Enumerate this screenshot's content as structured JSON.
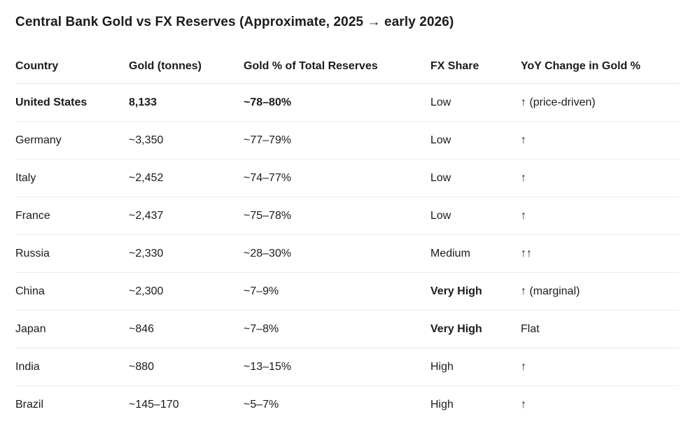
{
  "page": {
    "background": "#ffffff"
  },
  "chart_data": {
    "type": "table",
    "title": "Central Bank Gold vs FX Reserves (Approximate, 2025 → early 2026)",
    "columns": [
      "Country",
      "Gold (tonnes)",
      "Gold % of Total Reserves",
      "FX Share",
      "YoY Change in Gold %"
    ],
    "rows": [
      {
        "cells": [
          "United States",
          "8,133",
          "~78–80%",
          "Low",
          "↑ (price-driven)"
        ],
        "bold": [
          0,
          1,
          2
        ]
      },
      {
        "cells": [
          "Germany",
          "~3,350",
          "~77–79%",
          "Low",
          "↑"
        ],
        "bold": []
      },
      {
        "cells": [
          "Italy",
          "~2,452",
          "~74–77%",
          "Low",
          "↑"
        ],
        "bold": []
      },
      {
        "cells": [
          "France",
          "~2,437",
          "~75–78%",
          "Low",
          "↑"
        ],
        "bold": []
      },
      {
        "cells": [
          "Russia",
          "~2,330",
          "~28–30%",
          "Medium",
          "↑↑"
        ],
        "bold": []
      },
      {
        "cells": [
          "China",
          "~2,300",
          "~7–9%",
          "Very High",
          "↑ (marginal)"
        ],
        "bold": [
          3
        ]
      },
      {
        "cells": [
          "Japan",
          "~846",
          "~7–8%",
          "Very High",
          "Flat"
        ],
        "bold": [
          3
        ]
      },
      {
        "cells": [
          "India",
          "~880",
          "~13–15%",
          "High",
          "↑"
        ],
        "bold": []
      },
      {
        "cells": [
          "Brazil",
          "~145–170",
          "~5–7%",
          "High",
          "↑"
        ],
        "bold": []
      }
    ]
  },
  "colors": {
    "text": "#1b1b1b",
    "header_divider": "#e0e0e0",
    "row_divider": "#eaeaea",
    "background": "#ffffff"
  }
}
